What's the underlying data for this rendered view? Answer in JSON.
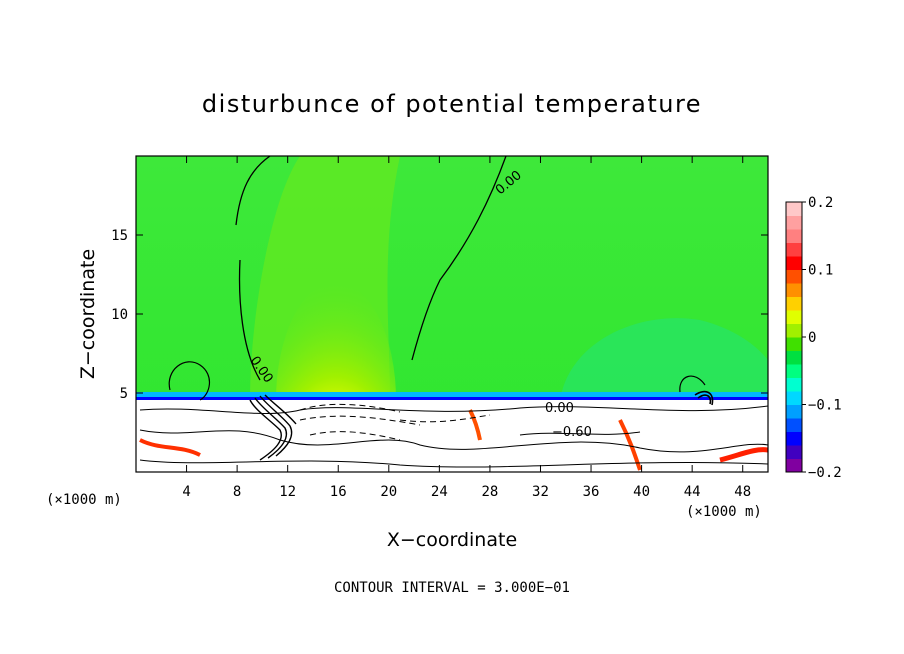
{
  "chart_data": {
    "type": "heatmap",
    "title": "disturbunce of potential temperature",
    "xlabel": "X−coordinate",
    "ylabel": "Z−coordinate",
    "x_unit_left": "(×1000 m)",
    "x_unit_right": "(×1000 m)",
    "xlim": [
      0,
      50
    ],
    "ylim": [
      0,
      20
    ],
    "x_ticks": [
      4,
      8,
      12,
      16,
      20,
      24,
      28,
      32,
      36,
      40,
      44,
      48
    ],
    "y_ticks": [
      5,
      10,
      15
    ],
    "colorbar": {
      "range": [
        -0.2,
        0.2
      ],
      "tick_values": [
        0.2,
        0.1,
        0,
        -0.1,
        -0.2
      ],
      "tick_labels": [
        "0.2",
        "0.1",
        "0",
        "−0.1",
        "−0.2"
      ],
      "colors": [
        "#8000a0",
        "#4000c0",
        "#0000ff",
        "#0050ff",
        "#00a0ff",
        "#00d8ff",
        "#00ffd0",
        "#00ff80",
        "#00e040",
        "#40e000",
        "#a0f000",
        "#e0ff00",
        "#ffd000",
        "#ff9000",
        "#ff5000",
        "#ff0000",
        "#ff4040",
        "#ff8080",
        "#ffa0a0",
        "#ffc8c8"
      ]
    },
    "contour_labels": [
      "0.00",
      "0.00",
      "0.00",
      "−0.60"
    ],
    "contour_interval_text": "CONTOUR INTERVAL = 3.000E−01",
    "colors": {
      "background_field": "#2ee62e",
      "warm_plume": "#ffff00",
      "cold_layer": "#ffffff"
    }
  }
}
